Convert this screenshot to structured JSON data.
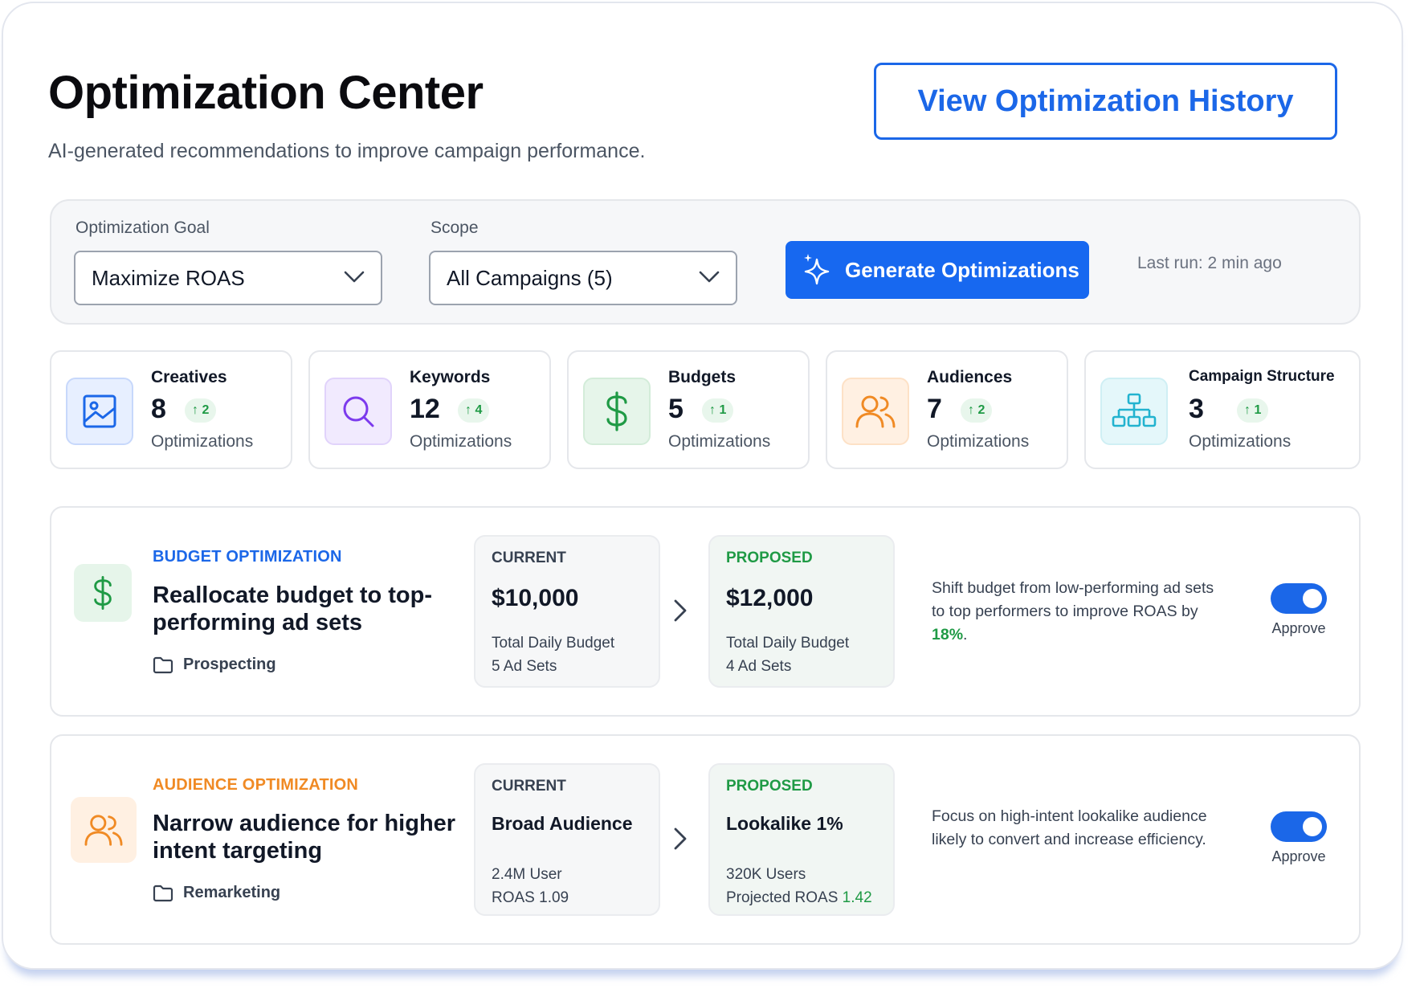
{
  "header": {
    "title": "Optimization Center",
    "subtitle": "AI-generated recommendations to improve campaign performance.",
    "history_button": "View Optimization History"
  },
  "controls": {
    "goal_label": "Optimization Goal",
    "goal_value": "Maximize ROAS",
    "scope_label": "Scope",
    "scope_value": "All Campaigns (5)",
    "generate_button": "Generate Optimizations",
    "last_run": "Last run: 2 min ago"
  },
  "stats": [
    {
      "title": "Creatives",
      "count": "8",
      "delta": "2",
      "sub": "Optimizations",
      "icon": "image-icon",
      "color": "#1b67e8"
    },
    {
      "title": "Keywords",
      "count": "12",
      "delta": "4",
      "sub": "Optimizations",
      "icon": "search-icon",
      "color": "#7c3aed"
    },
    {
      "title": "Budgets",
      "count": "5",
      "delta": "1",
      "sub": "Optimizations",
      "icon": "dollar-icon",
      "color": "#1f9a45"
    },
    {
      "title": "Audiences",
      "count": "7",
      "delta": "2",
      "sub": "Optimizations",
      "icon": "users-icon",
      "color": "#f08a24"
    },
    {
      "title": "Campaign Structure",
      "count": "3",
      "delta": "1",
      "sub": "Optimizations",
      "icon": "hierarchy-icon",
      "color": "#22b3cf"
    }
  ],
  "recommendations": [
    {
      "kicker": "BUDGET OPTIMIZATION",
      "kicker_color": "#1b67e8",
      "icon": "dollar-icon",
      "title": "Reallocate budget to top-performing ad sets",
      "folder": "Prospecting",
      "current": {
        "head": "CURRENT",
        "main": "$10,000",
        "line1": "Total Daily Budget",
        "line2": "5 Ad Sets"
      },
      "proposed": {
        "head": "PROPOSED",
        "main": "$12,000",
        "line1": "Total Daily Budget",
        "line2": "4 Ad Sets"
      },
      "desc_before": "Shift budget from low-performing ad sets to top performers to improve ROAS by ",
      "desc_highlight": "18%",
      "desc_after": ".",
      "approve_label": "Approve",
      "approved": true
    },
    {
      "kicker": "AUDIENCE OPTIMIZATION",
      "kicker_color": "#f08a24",
      "icon": "users-icon",
      "title": "Narrow audience for higher intent targeting",
      "folder": "Remarketing",
      "current": {
        "head": "CURRENT",
        "main": "Broad Audience",
        "line1": "2.4M User",
        "line2": "ROAS 1.09"
      },
      "proposed": {
        "head": "PROPOSED",
        "main": "Lookalike 1%",
        "line1": "320K Users",
        "line2_prefix": "Projected ROAS ",
        "line2_value": "1.42"
      },
      "desc": "Focus on high-intent lookalike audience likely to convert and increase efficiency.",
      "approve_label": "Approve",
      "approved": true
    }
  ]
}
